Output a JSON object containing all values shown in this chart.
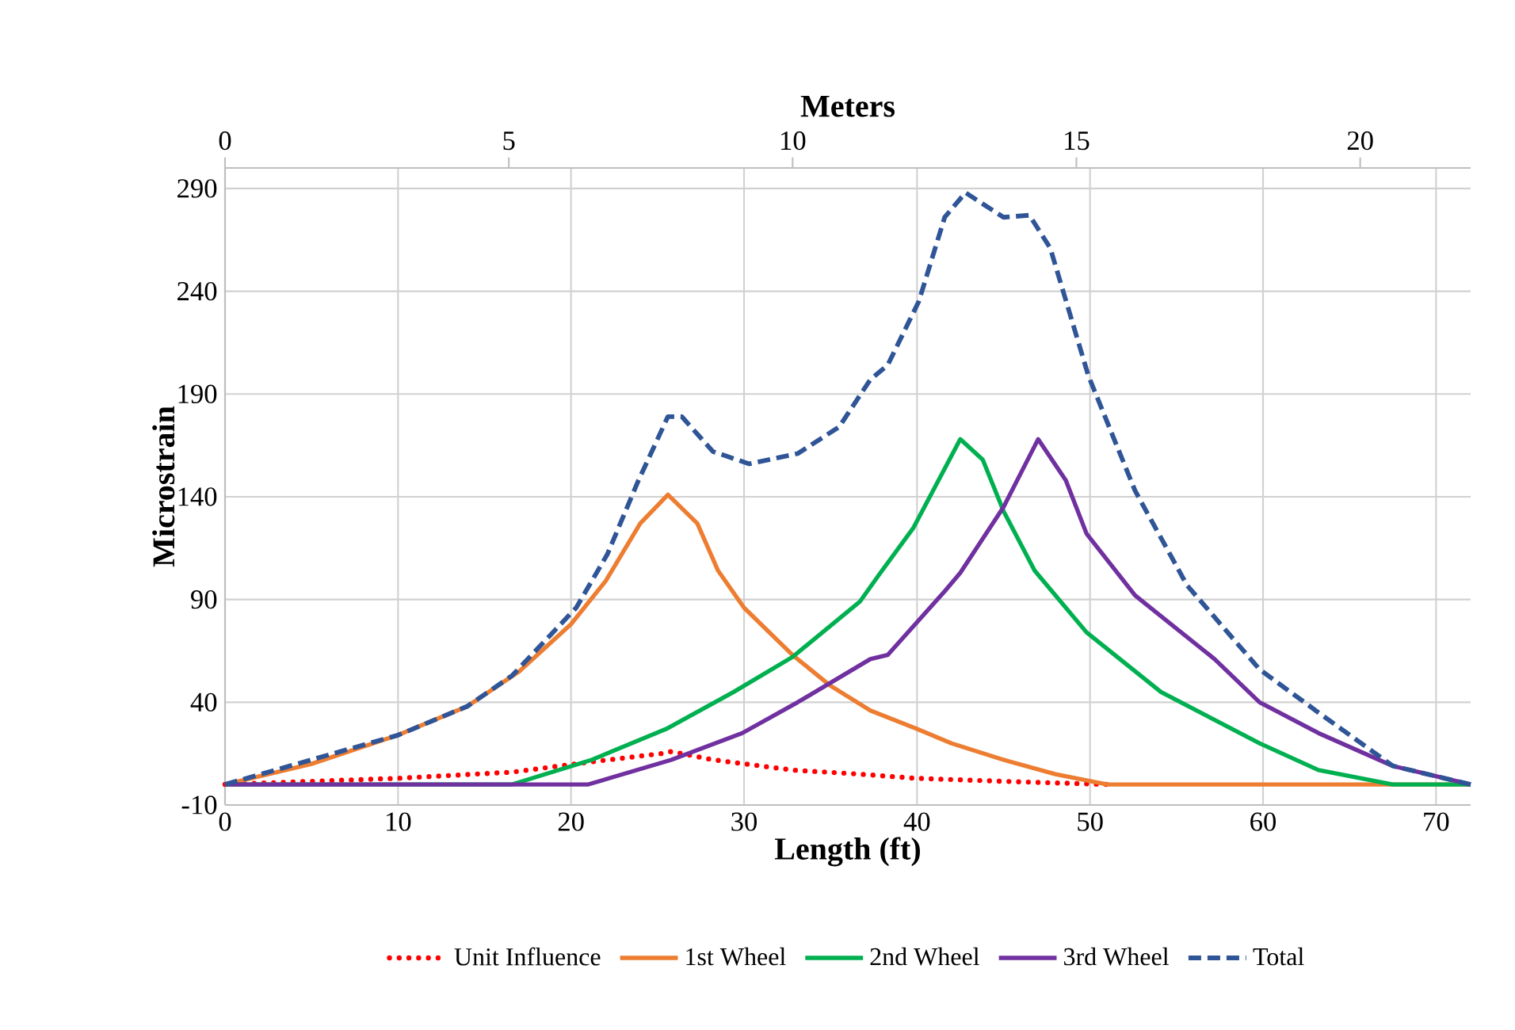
{
  "chart_data": {
    "type": "line",
    "xlabel": "Length (ft)",
    "ylabel": "Microstrain",
    "x2label": "Meters",
    "xlim": [
      0,
      72
    ],
    "xticks": [
      0,
      10,
      20,
      30,
      40,
      50,
      60,
      70
    ],
    "x2lim": [
      0,
      21.9456
    ],
    "x2ticks": [
      0,
      5,
      10,
      15,
      20
    ],
    "ylim": [
      -10,
      300
    ],
    "yticks": [
      -10,
      40,
      90,
      140,
      190,
      240,
      290
    ],
    "grid": true,
    "legend": "bottom",
    "series": [
      {
        "name": "Unit Influence",
        "color": "#ff0000",
        "line_style": "dotted",
        "x": [
          0,
          10,
          16.6,
          21.2,
          25.2,
          25.8,
          28.2,
          32.8,
          36.7,
          39.9,
          45,
          51
        ],
        "values": [
          0,
          3,
          6,
          11,
          15,
          16,
          12,
          7,
          5,
          3,
          1.5,
          0
        ]
      },
      {
        "name": "1st Wheel",
        "color": "#ed7d31",
        "line_style": "solid",
        "x": [
          0,
          5,
          10,
          14,
          17,
          20,
          22,
          24,
          25.6,
          27.3,
          28.5,
          30,
          32.8,
          35,
          37.3,
          40,
          42,
          45,
          48,
          51,
          72
        ],
        "values": [
          0,
          10,
          24,
          38,
          55,
          78,
          99,
          127,
          141,
          127,
          104,
          86,
          63,
          48,
          36,
          27,
          20,
          12,
          5,
          0,
          0
        ]
      },
      {
        "name": "2nd Wheel",
        "color": "#00b050",
        "line_style": "solid",
        "x": [
          0,
          16.6,
          21.2,
          25.5,
          29.4,
          32.8,
          36.7,
          37.8,
          39.8,
          42.5,
          43.8,
          45,
          46.8,
          49.8,
          54.1,
          59.8,
          63.2,
          67.5,
          72
        ],
        "values": [
          0,
          0,
          12,
          27,
          45,
          62,
          89,
          102,
          125,
          168,
          158,
          133,
          104,
          74,
          45,
          20,
          7,
          0,
          0
        ]
      },
      {
        "name": "3rd Wheel",
        "color": "#7030a0",
        "line_style": "solid",
        "x": [
          0,
          21,
          25.8,
          29.9,
          33.1,
          37.3,
          38.3,
          41.6,
          42.5,
          45,
          47,
          48.6,
          49.8,
          52.6,
          57.2,
          59.8,
          63.2,
          67.5,
          72
        ],
        "values": [
          0,
          0,
          12,
          25,
          40,
          61,
          63,
          94,
          103,
          135,
          168,
          148,
          122,
          92,
          61,
          40,
          25,
          9,
          0
        ]
      },
      {
        "name": "Total",
        "color": "#2f5597",
        "line_style": "dashed",
        "x": [
          0,
          10,
          14,
          16.6,
          20.3,
          22.1,
          23.9,
          25.6,
          26.4,
          28.2,
          30.3,
          33.1,
          35.5,
          37.3,
          38.3,
          40.1,
          41.6,
          42.8,
          45,
          46.5,
          47.7,
          49.9,
          52.6,
          55.6,
          59.8,
          63.2,
          67.5,
          72
        ],
        "values": [
          0,
          24,
          38,
          53,
          86,
          112,
          148,
          179,
          179,
          162,
          156,
          161,
          174,
          197,
          204,
          235,
          276,
          288,
          276,
          277,
          261,
          199,
          143,
          97,
          56,
          35,
          9,
          0
        ]
      }
    ]
  }
}
